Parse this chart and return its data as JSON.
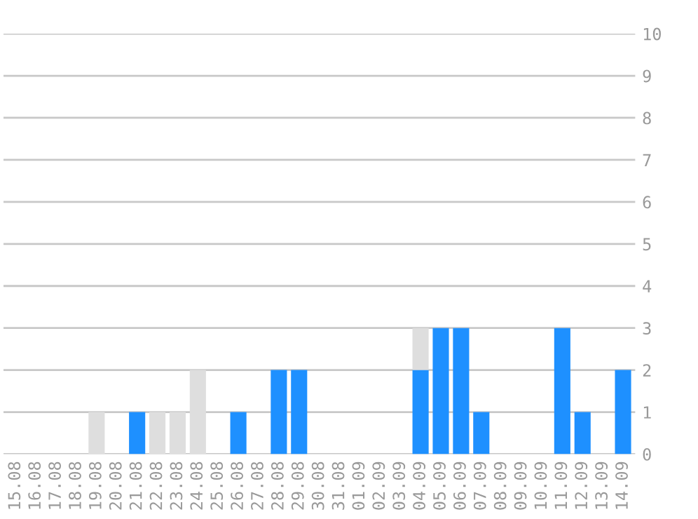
{
  "chart_data": {
    "type": "bar",
    "stacked": true,
    "categories": [
      "15.08",
      "16.08",
      "17.08",
      "18.08",
      "19.08",
      "20.08",
      "21.08",
      "22.08",
      "23.08",
      "24.08",
      "25.08",
      "26.08",
      "27.08",
      "28.08",
      "29.08",
      "30.08",
      "31.08",
      "01.09",
      "02.09",
      "03.09",
      "04.09",
      "05.09",
      "06.09",
      "07.09",
      "08.09",
      "09.09",
      "10.09",
      "11.09",
      "12.09",
      "13.09",
      "14.09"
    ],
    "series": [
      {
        "color": "#1e90ff",
        "values": [
          0,
          0,
          0,
          0,
          0,
          0,
          1,
          0,
          0,
          0,
          0,
          1,
          0,
          2,
          2,
          0,
          0,
          0,
          0,
          0,
          2,
          3,
          3,
          1,
          0,
          0,
          0,
          3,
          1,
          0,
          2
        ]
      },
      {
        "color": "#dedede",
        "values": [
          0,
          0,
          0,
          0,
          1,
          0,
          0,
          1,
          1,
          2,
          0,
          0,
          0,
          0,
          0,
          0,
          0,
          0,
          0,
          0,
          1,
          0,
          0,
          0,
          0,
          0,
          0,
          0,
          0,
          0,
          0
        ]
      }
    ],
    "ylim": [
      0,
      10
    ],
    "yticks": [
      0,
      1,
      2,
      3,
      4,
      5,
      6,
      7,
      8,
      9,
      10
    ],
    "grid": "y"
  }
}
